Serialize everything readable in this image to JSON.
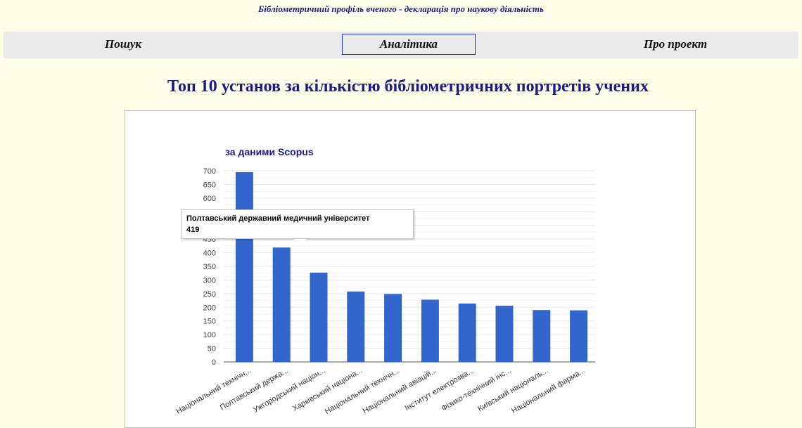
{
  "header": {
    "subtitle": "Бібліометричний профіль вченого - декларація про наукову діяльність"
  },
  "nav": {
    "search": "Пошук",
    "analytics": "Аналітика",
    "about": "Про проект"
  },
  "page_title": "Топ 10 установ за кількістю бібліометричних портретів учених",
  "tooltip": {
    "name": "Полтавський державний медичний університет",
    "value": "419"
  },
  "colors": {
    "bar": "#3366cc",
    "title": "#1a1a8a",
    "background": "#fefde8"
  },
  "chart_data": {
    "type": "bar",
    "title": "за даними Scopus",
    "categories": [
      "Національний технічн...",
      "Полтавський держа...",
      "Ужгородський націон...",
      "Харківський націона...",
      "Національний технічн...",
      "Національний авіацій...",
      "Інститут електрозва...",
      "Фізико-технічний інс...",
      "Київський національ...",
      "Національний фарма..."
    ],
    "values": [
      695,
      419,
      327,
      258,
      249,
      228,
      214,
      206,
      190,
      189
    ],
    "ylim": [
      0,
      700
    ],
    "yticks": [
      0,
      50,
      100,
      150,
      200,
      250,
      300,
      350,
      400,
      450,
      500,
      550,
      600,
      650,
      700
    ],
    "grid": true,
    "xlabel": "",
    "ylabel": ""
  }
}
